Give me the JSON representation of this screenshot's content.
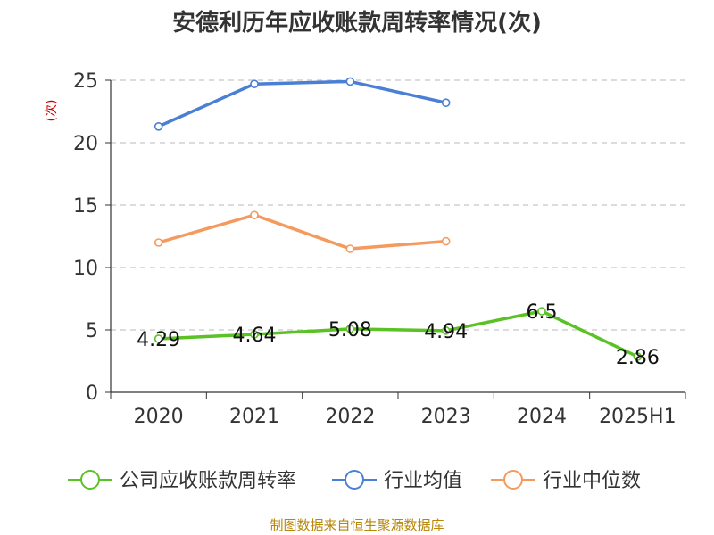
{
  "title": "安德利历年应收账款周转率情况(次)",
  "unit": "(次)",
  "source": "制图数据来自恒生聚源数据库",
  "chart_data": {
    "type": "line",
    "title": "安德利历年应收账款周转率情况(次)",
    "categories": [
      "2020",
      "2021",
      "2022",
      "2023",
      "2024",
      "2025H1"
    ],
    "ylim": [
      0,
      25
    ],
    "yticks": [
      "0",
      "5",
      "10",
      "15",
      "20",
      "25"
    ],
    "ylabel": "(次)",
    "grid": true,
    "legend_position": "bottom",
    "series": [
      {
        "name": "公司应收账款周转率",
        "color": "#5bc225",
        "values": [
          4.29,
          4.64,
          5.08,
          4.94,
          6.5,
          2.86
        ],
        "labels": [
          "4.29",
          "4.64",
          "5.08",
          "4.94",
          "6.5",
          "2.86"
        ]
      },
      {
        "name": "行业均值",
        "color": "#4a7fd6",
        "values": [
          21.3,
          24.7,
          24.9,
          23.2,
          null,
          null
        ]
      },
      {
        "name": "行业中位数",
        "color": "#f59a5f",
        "values": [
          12.0,
          14.2,
          11.5,
          12.1,
          null,
          null
        ]
      }
    ]
  }
}
